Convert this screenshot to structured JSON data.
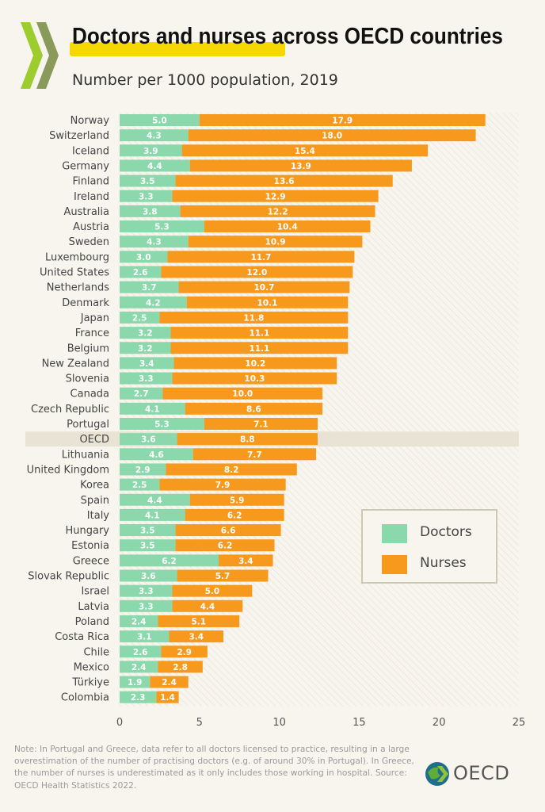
{
  "header": {
    "title": "Doctors and nurses across OECD countries",
    "subtitle": "Number per 1000 population, 2019"
  },
  "colors": {
    "doctors": "#8ad8ab",
    "nurses": "#f7991c",
    "highlight": "#f5d800",
    "logo_green": "#9ccc2d",
    "logo_olive": "#8a9a5b"
  },
  "legend": {
    "doctors_label": "Doctors",
    "nurses_label": "Nurses"
  },
  "chart_data": {
    "type": "bar",
    "orientation": "horizontal",
    "stacked": true,
    "title": "Doctors and nurses across OECD countries",
    "subtitle": "Number per 1000 population, 2019",
    "xlim": [
      0,
      25
    ],
    "xticks": [
      0,
      5,
      10,
      15,
      20,
      25
    ],
    "legend_position": "bottom-right",
    "highlighted_category": "OECD",
    "categories": [
      "Norway",
      "Switzerland",
      "Iceland",
      "Germany",
      "Finland",
      "Ireland",
      "Australia",
      "Austria",
      "Sweden",
      "Luxembourg",
      "United States",
      "Netherlands",
      "Denmark",
      "Japan",
      "France",
      "Belgium",
      "New Zealand",
      "Slovenia",
      "Canada",
      "Czech Republic",
      "Portugal",
      "OECD",
      "Lithuania",
      "United Kingdom",
      "Korea",
      "Spain",
      "Italy",
      "Hungary",
      "Estonia",
      "Greece",
      "Slovak Republic",
      "Israel",
      "Latvia",
      "Poland",
      "Costa Rica",
      "Chile",
      "Mexico",
      "Türkiye",
      "Colombia"
    ],
    "series": [
      {
        "name": "Doctors",
        "values": [
          5.0,
          4.3,
          3.9,
          4.4,
          3.5,
          3.3,
          3.8,
          5.3,
          4.3,
          3.0,
          2.6,
          3.7,
          4.2,
          2.5,
          3.2,
          3.2,
          3.4,
          3.3,
          2.7,
          4.1,
          5.3,
          3.6,
          4.6,
          2.9,
          2.5,
          4.4,
          4.1,
          3.5,
          3.5,
          6.2,
          3.6,
          3.3,
          3.3,
          2.4,
          3.1,
          2.6,
          2.4,
          1.9,
          2.3
        ]
      },
      {
        "name": "Nurses",
        "values": [
          17.9,
          18.0,
          15.4,
          13.9,
          13.6,
          12.9,
          12.2,
          10.4,
          10.9,
          11.7,
          12.0,
          10.7,
          10.1,
          11.8,
          11.1,
          11.1,
          10.2,
          10.3,
          10.0,
          8.6,
          7.1,
          8.8,
          7.7,
          8.2,
          7.9,
          5.9,
          6.2,
          6.6,
          6.2,
          3.4,
          5.7,
          5.0,
          4.4,
          5.1,
          3.4,
          2.9,
          2.8,
          2.4,
          1.4
        ]
      }
    ]
  },
  "note": "Note: In Portugal and Greece, data refer to all doctors licensed to practice, resulting in a large overestimation of the number of practising doctors (e.g. of around 30% in Portugal). In Greece, the number of nurses is underestimated as it only includes those working in hospital. Source: OECD Health Statistics 2022.",
  "footer": {
    "brand": "OECD"
  }
}
